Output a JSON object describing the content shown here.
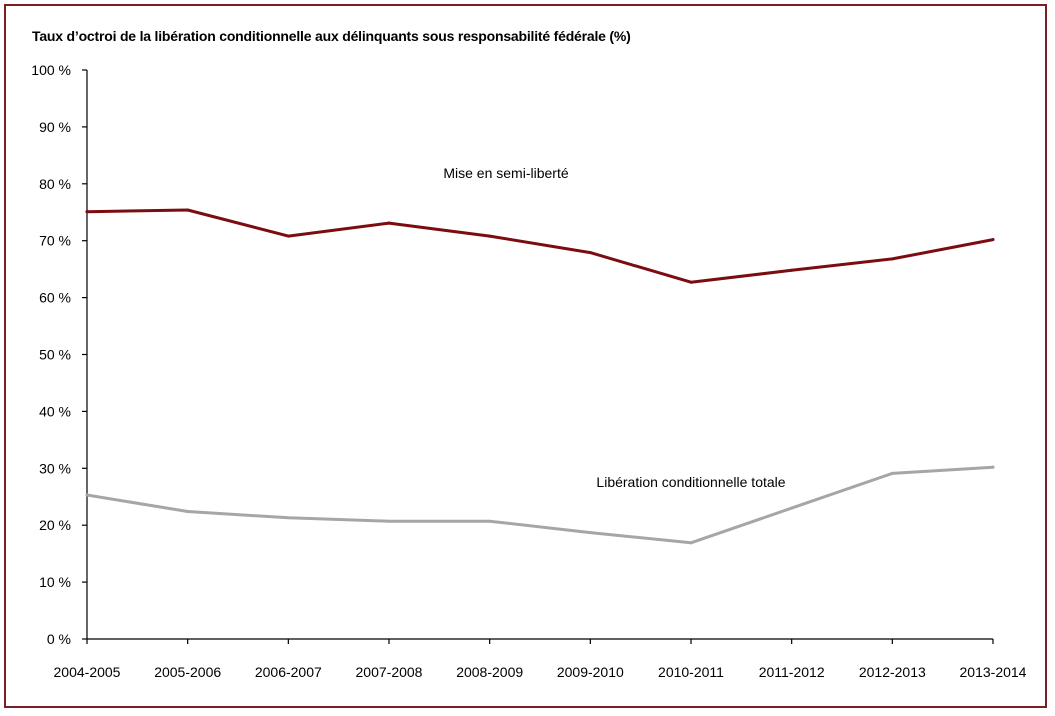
{
  "chart_data": {
    "type": "line",
    "title": "Taux d’octroi de la libération conditionnelle aux délinquants sous responsabilité fédérale (%)",
    "categories": [
      "2004-2005",
      "2005-2006",
      "2006-2007",
      "2007-2008",
      "2008-2009",
      "2009-2010",
      "2010-2011",
      "2011-2012",
      "2012-2013",
      "2013-2014"
    ],
    "yticks": [
      "0 %",
      "10 %",
      "20 %",
      "30 %",
      "40 %",
      "50 %",
      "60 %",
      "70 %",
      "80 %",
      "90 %",
      "100 %"
    ],
    "ylim": [
      0,
      100
    ],
    "grid": false,
    "legend": "none",
    "series": [
      {
        "name": "Mise en semi-liberté",
        "color": "#7b0d10",
        "values": [
          75.1,
          75.4,
          70.8,
          73.1,
          70.8,
          67.9,
          62.7,
          64.8,
          66.8,
          70.2
        ]
      },
      {
        "name": "Libération conditionnelle totale",
        "color": "#a6a6a6",
        "values": [
          25.3,
          22.4,
          21.3,
          20.7,
          20.7,
          18.7,
          16.9,
          23.0,
          29.1,
          30.2
        ]
      }
    ],
    "colors": {
      "frame": "#7a1f24",
      "axis": "#000000"
    }
  }
}
